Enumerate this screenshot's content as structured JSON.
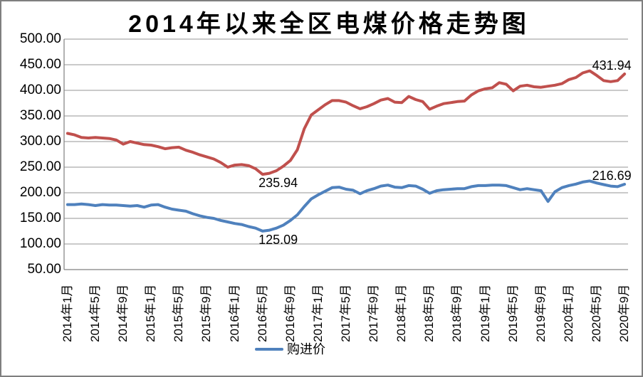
{
  "chart_data": {
    "type": "line",
    "title": "2014年以来全区电煤价格走势图",
    "x_categories": [
      "2014年1月",
      "2014年2月",
      "2014年3月",
      "2014年4月",
      "2014年5月",
      "2014年6月",
      "2014年7月",
      "2014年8月",
      "2014年9月",
      "2014年10月",
      "2014年11月",
      "2014年12月",
      "2015年1月",
      "2015年2月",
      "2015年3月",
      "2015年4月",
      "2015年5月",
      "2015年6月",
      "2015年7月",
      "2015年8月",
      "2015年9月",
      "2015年10月",
      "2015年11月",
      "2015年12月",
      "2016年1月",
      "2016年2月",
      "2016年3月",
      "2016年4月",
      "2016年5月",
      "2016年6月",
      "2016年7月",
      "2016年8月",
      "2016年9月",
      "2016年10月",
      "2016年11月",
      "2016年12月",
      "2017年1月",
      "2017年2月",
      "2017年3月",
      "2017年4月",
      "2017年5月",
      "2017年6月",
      "2017年7月",
      "2017年8月",
      "2017年9月",
      "2017年10月",
      "2017年11月",
      "2017年12月",
      "2018年1月",
      "2018年2月",
      "2018年3月",
      "2018年4月",
      "2018年5月",
      "2018年6月",
      "2018年7月",
      "2018年8月",
      "2018年9月",
      "2018年10月",
      "2018年11月",
      "2018年12月",
      "2019年1月",
      "2019年2月",
      "2019年3月",
      "2019年4月",
      "2019年5月",
      "2019年6月",
      "2019年7月",
      "2019年8月",
      "2019年9月",
      "2019年10月",
      "2019年11月",
      "2019年12月",
      "2020年1月",
      "2020年2月",
      "2020年3月",
      "2020年4月",
      "2020年5月",
      "2020年6月",
      "2020年7月",
      "2020年8月",
      "2020年9月"
    ],
    "x_tick_labels": [
      "2014年1月",
      "2014年5月",
      "2014年9月",
      "2015年1月",
      "2015年5月",
      "2015年9月",
      "2016年1月",
      "2016年5月",
      "2016年9月",
      "2017年1月",
      "2017年5月",
      "2017年9月",
      "2018年1月",
      "2018年5月",
      "2018年9月",
      "2019年1月",
      "2019年5月",
      "2019年9月",
      "2020年1月",
      "2020年5月",
      "2020年9月"
    ],
    "x_tick_step": 4,
    "y_ticks": [
      "500.00",
      "450.00",
      "400.00",
      "350.00",
      "300.00",
      "250.00",
      "200.00",
      "150.00",
      "100.00",
      "50.00"
    ],
    "y_axis_range": [
      50,
      500
    ],
    "gridlines": true,
    "series": [
      {
        "name": "",
        "color": "#C0504D",
        "values": [
          316,
          313,
          308,
          307,
          308,
          307,
          306,
          303,
          295,
          300,
          297,
          294,
          293,
          290,
          286,
          288,
          289,
          283,
          279,
          274,
          270,
          266,
          259,
          250,
          254,
          255,
          253,
          247,
          235.94,
          238,
          243,
          252,
          263,
          284,
          325,
          352,
          362,
          372,
          380,
          380,
          377,
          370,
          364,
          368,
          374,
          381,
          384,
          377,
          376,
          388,
          382,
          378,
          363,
          369,
          374,
          376,
          378,
          379,
          391,
          399,
          403,
          405,
          415,
          412,
          399,
          408,
          410,
          407,
          406,
          408,
          410,
          413,
          421,
          425,
          434,
          438,
          429,
          419,
          417,
          419,
          431.94
        ]
      },
      {
        "name": "购进价",
        "color": "#4F81BD",
        "values": [
          177,
          177,
          178,
          177,
          175,
          177,
          176,
          176,
          175,
          174,
          175,
          172,
          176,
          177,
          172,
          168,
          166,
          164,
          159,
          155,
          152,
          150,
          146,
          143,
          140,
          138,
          134,
          131,
          125.09,
          127,
          131,
          137,
          146,
          157,
          173,
          188,
          196,
          203,
          210,
          211,
          207,
          205,
          198,
          204,
          208,
          213,
          215,
          211,
          210,
          214,
          213,
          207,
          199,
          204,
          206,
          207,
          208,
          208,
          212,
          214,
          214,
          215,
          215,
          214,
          210,
          206,
          208,
          206,
          204,
          183,
          202,
          210,
          214,
          217,
          221,
          223,
          219,
          216,
          213,
          212,
          216.69
        ]
      }
    ],
    "legend": {
      "position": "bottom",
      "entries": [
        {
          "label": "购进价",
          "color": "#4F81BD"
        }
      ]
    },
    "annotations": [
      {
        "series": 0,
        "index": 28,
        "text": "235.94",
        "placement": "below"
      },
      {
        "series": 1,
        "index": 28,
        "text": "125.09",
        "placement": "below"
      },
      {
        "series": 0,
        "index": 80,
        "text": "431.94",
        "placement": "above"
      },
      {
        "series": 1,
        "index": 80,
        "text": "216.69",
        "placement": "above"
      }
    ]
  },
  "colors": {
    "background": "#FFFFFF",
    "border": "#7F7F7F",
    "gridline": "#969696",
    "axis": "#808080",
    "text": "#000000"
  }
}
